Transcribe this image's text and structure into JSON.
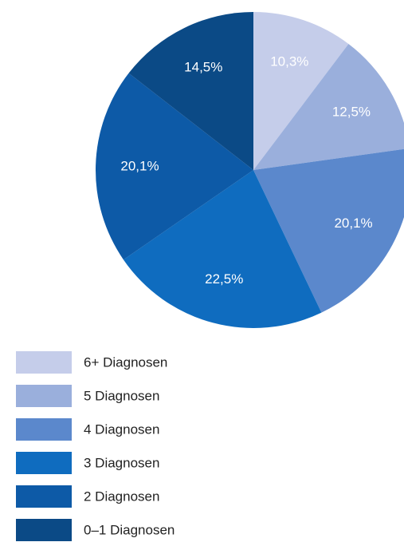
{
  "chart_data": {
    "type": "pie",
    "categories": [
      "6+ Diagnosen",
      "5 Diagnosen",
      "4 Diagnosen",
      "3 Diagnosen",
      "2 Diagnosen",
      "0–1 Diagnosen"
    ],
    "values": [
      10.3,
      12.5,
      20.1,
      22.5,
      20.1,
      14.5
    ],
    "value_labels": [
      "10,3%",
      "12,5%",
      "20,1%",
      "22,5%",
      "20,1%",
      "14,5%"
    ],
    "colors": [
      "#c5cdea",
      "#9aafdc",
      "#5b88cc",
      "#0f6cbf",
      "#0d5aa7",
      "#0b4a86"
    ]
  }
}
